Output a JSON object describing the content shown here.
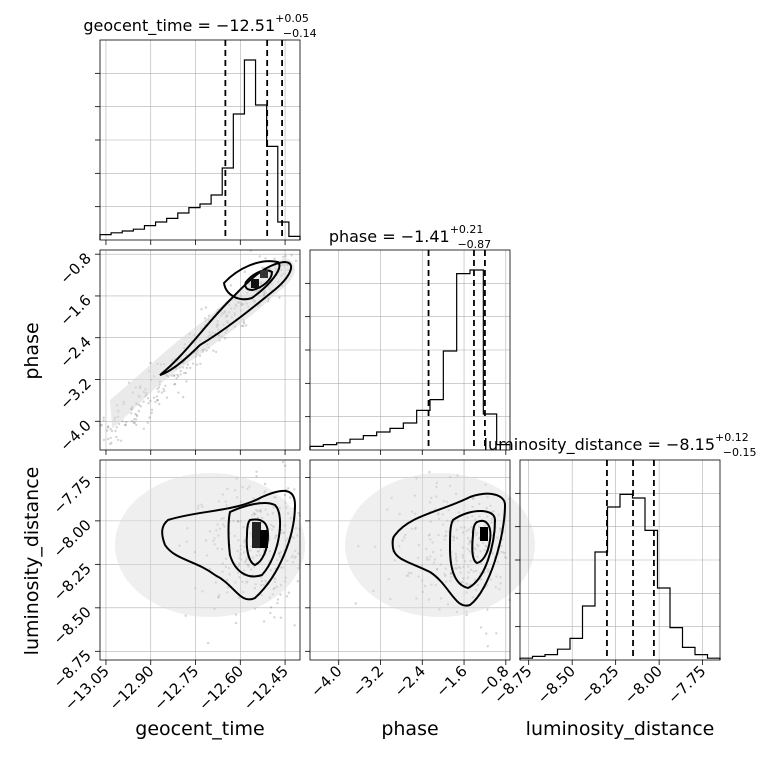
{
  "chart_data": {
    "type": "corner",
    "parameters": [
      "geocent_time",
      "phase",
      "luminosity_distance"
    ],
    "axis_labels": {
      "geocent_time": "geocent_time",
      "phase": "phase",
      "luminosity_distance": "luminosity_distance"
    },
    "ticks": {
      "geocent_time": [
        "−13.05",
        "−12.90",
        "−12.75",
        "−12.60",
        "−12.45"
      ],
      "phase": [
        "−4.0",
        "−3.2",
        "−2.4",
        "−1.6",
        "−0.8"
      ],
      "luminosity_distance": [
        "−8.75",
        "−8.50",
        "−8.25",
        "−8.00",
        "−7.75"
      ]
    },
    "tick_values": {
      "geocent_time": [
        -13.05,
        -12.9,
        -12.75,
        -12.6,
        -12.45
      ],
      "phase": [
        -4.0,
        -3.2,
        -2.4,
        -1.6,
        -0.8
      ],
      "luminosity_distance": [
        -8.75,
        -8.5,
        -8.25,
        -8.0,
        -7.75
      ]
    },
    "ranges": {
      "geocent_time": [
        -13.07,
        -12.4
      ],
      "phase": [
        -4.55,
        -0.72
      ],
      "luminosity_distance": [
        -8.8,
        -7.65
      ]
    },
    "summaries": {
      "geocent_time": {
        "name": "geocent_time",
        "median": "−12.51",
        "plus": "+0.05",
        "minus": "−0.14",
        "q16": -12.65,
        "q50": -12.51,
        "q84": -12.46
      },
      "phase": {
        "name": "phase",
        "median": "−1.41",
        "plus": "+0.21",
        "minus": "−0.87",
        "q16": -2.28,
        "q50": -1.41,
        "q84": -1.2
      },
      "luminosity_distance": {
        "name": "luminosity_distance",
        "median": "−8.15",
        "plus": "+0.12",
        "minus": "−0.15",
        "q16": -8.3,
        "q50": -8.15,
        "q84": -8.03
      }
    },
    "histograms": {
      "geocent_time": [
        0.03,
        0.04,
        0.05,
        0.06,
        0.08,
        0.1,
        0.12,
        0.15,
        0.18,
        0.2,
        0.25,
        0.4,
        0.7,
        1.0,
        0.75,
        0.52,
        0.1,
        0.02
      ],
      "phase": [
        0.02,
        0.03,
        0.04,
        0.06,
        0.08,
        0.1,
        0.12,
        0.15,
        0.22,
        0.28,
        0.55,
        0.98,
        1.0,
        0.2,
        0.03
      ],
      "luminosity_distance": [
        0.01,
        0.02,
        0.03,
        0.06,
        0.12,
        0.3,
        0.6,
        0.85,
        0.92,
        0.9,
        0.72,
        0.4,
        0.18,
        0.07,
        0.03,
        0.01
      ]
    }
  }
}
